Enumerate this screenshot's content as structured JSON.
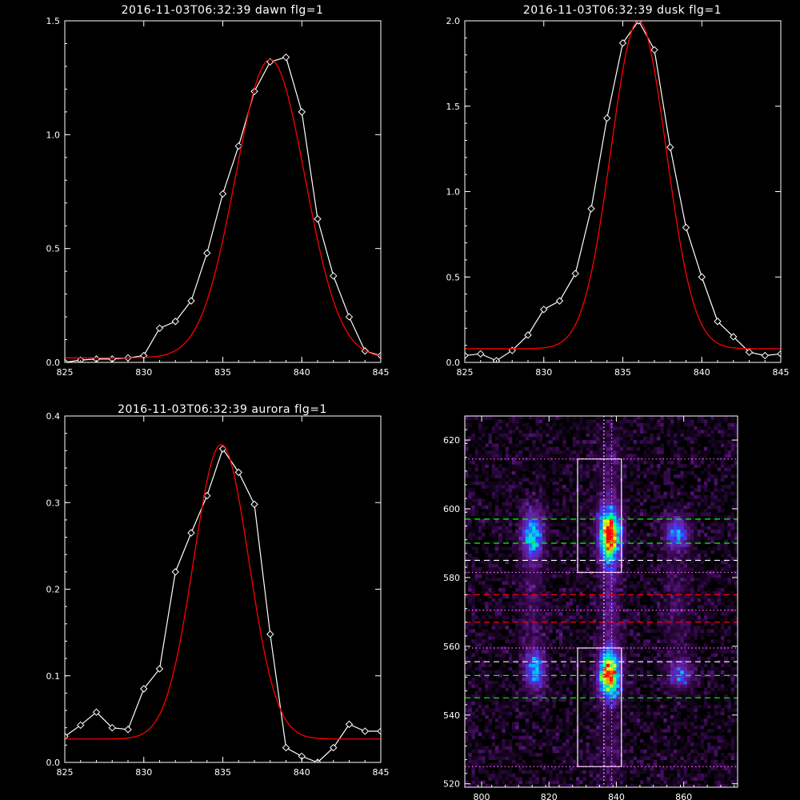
{
  "chart_data": [
    {
      "type": "line",
      "title": "2016-11-03T06:32:39 dawn flg=1",
      "xlim": [
        825,
        845
      ],
      "ylim": [
        0,
        1.5
      ],
      "xticks": [
        "825",
        "830",
        "835",
        "840",
        "845"
      ],
      "yticks": [
        "0.0",
        "0.5",
        "1.0",
        "1.5"
      ],
      "series": [
        {
          "style": "observed-with-diamond-markers",
          "color": "#ffffff",
          "x": [
            825,
            826,
            827,
            828,
            829,
            830,
            831,
            832,
            833,
            834,
            835,
            836,
            837,
            838,
            839,
            840,
            841,
            842,
            843,
            844,
            845
          ],
          "y": [
            0.0,
            0.01,
            0.015,
            0.015,
            0.02,
            0.03,
            0.15,
            0.18,
            0.27,
            0.48,
            0.74,
            0.95,
            1.19,
            1.32,
            1.34,
            1.1,
            0.63,
            0.38,
            0.2,
            0.05,
            0.03
          ]
        },
        {
          "style": "gaussian-fit",
          "color": "#ff0000",
          "fit": {
            "amplitude": 1.31,
            "center": 838.0,
            "sigma": 2.2,
            "baseline": 0.02
          }
        }
      ]
    },
    {
      "type": "line",
      "title": "2016-11-03T06:32:39 dusk flg=1",
      "xlim": [
        825,
        845
      ],
      "ylim": [
        0,
        2.0
      ],
      "xticks": [
        "825",
        "830",
        "835",
        "840",
        "845"
      ],
      "yticks": [
        "0.0",
        "0.5",
        "1.0",
        "1.5",
        "2.0"
      ],
      "series": [
        {
          "style": "observed-with-diamond-markers",
          "color": "#ffffff",
          "x": [
            825,
            826,
            827,
            828,
            829,
            830,
            831,
            832,
            833,
            834,
            835,
            836,
            837,
            838,
            839,
            840,
            841,
            842,
            843,
            844,
            845
          ],
          "y": [
            0.04,
            0.05,
            0.01,
            0.07,
            0.16,
            0.31,
            0.36,
            0.52,
            0.9,
            1.43,
            1.87,
            2.0,
            1.83,
            1.26,
            0.79,
            0.5,
            0.24,
            0.15,
            0.06,
            0.04,
            0.05
          ]
        },
        {
          "style": "gaussian-fit",
          "color": "#ff0000",
          "fit": {
            "amplitude": 1.92,
            "center": 836.0,
            "sigma": 1.75,
            "baseline": 0.08
          }
        }
      ]
    },
    {
      "type": "line",
      "title": "2016-11-03T06:32:39 aurora flg=1",
      "xlim": [
        825,
        845
      ],
      "ylim": [
        0,
        0.4
      ],
      "xticks": [
        "825",
        "830",
        "835",
        "840",
        "845"
      ],
      "yticks": [
        "0.0",
        "0.1",
        "0.2",
        "0.3",
        "0.4"
      ],
      "series": [
        {
          "style": "observed-with-diamond-markers",
          "color": "#ffffff",
          "x": [
            825,
            826,
            827,
            828,
            829,
            830,
            831,
            832,
            833,
            834,
            835,
            836,
            837,
            838,
            839,
            840,
            841,
            842,
            843,
            844,
            845
          ],
          "y": [
            0.03,
            0.043,
            0.058,
            0.04,
            0.038,
            0.085,
            0.108,
            0.22,
            0.265,
            0.308,
            0.362,
            0.335,
            0.298,
            0.148,
            0.017,
            0.007,
            0.0,
            0.017,
            0.044,
            0.036,
            0.036
          ]
        },
        {
          "style": "gaussian-fit",
          "color": "#ff0000",
          "fit": {
            "amplitude": 0.34,
            "center": 834.9,
            "sigma": 1.75,
            "baseline": 0.027
          }
        }
      ]
    },
    {
      "type": "heatmap",
      "title": "",
      "xlim": [
        795,
        876
      ],
      "ylim": [
        519,
        627
      ],
      "xticks": [
        "800",
        "820",
        "840",
        "860"
      ],
      "yticks": [
        "520",
        "540",
        "560",
        "580",
        "600",
        "620"
      ],
      "colormap": [
        "#000000",
        "#3b0a55",
        "#6a1e96",
        "#3a3dff",
        "#00c8ff",
        "#00ff80",
        "#ffff00",
        "#ff0000"
      ],
      "noise_level": 0.14,
      "sources": [
        {
          "x": 815,
          "y": 592.5,
          "sx": 2.2,
          "sy": 5.0,
          "amp": 0.55
        },
        {
          "x": 838,
          "y": 592.5,
          "sx": 2.2,
          "sy": 5.5,
          "amp": 1.0
        },
        {
          "x": 858,
          "y": 593,
          "sx": 2.5,
          "sy": 3.5,
          "amp": 0.4
        },
        {
          "x": 816,
          "y": 553,
          "sx": 2.0,
          "sy": 4.0,
          "amp": 0.5
        },
        {
          "x": 838,
          "y": 552,
          "sx": 2.2,
          "sy": 5.0,
          "amp": 0.95
        },
        {
          "x": 859,
          "y": 552,
          "sx": 2.5,
          "sy": 3.0,
          "amp": 0.35
        },
        {
          "x": 838,
          "y": 572,
          "sx": 2.0,
          "sy": 10.0,
          "amp": 0.2
        },
        {
          "x": 815,
          "y": 572,
          "sx": 2.5,
          "sy": 12.0,
          "amp": 0.12
        },
        {
          "x": 858,
          "y": 572,
          "sx": 3.0,
          "sy": 12.0,
          "amp": 0.1
        },
        {
          "x": 838,
          "y": 530,
          "sx": 2.5,
          "sy": 8.0,
          "amp": 0.12
        },
        {
          "x": 838,
          "y": 612,
          "sx": 2.5,
          "sy": 8.0,
          "amp": 0.12
        }
      ],
      "boxes": [
        {
          "x0": 828.5,
          "x1": 841.5,
          "y0": 581.5,
          "y1": 614.5
        },
        {
          "x0": 828.5,
          "x1": 841.5,
          "y0": 525,
          "y1": 559.5
        }
      ],
      "vertical_lines": [
        {
          "x": 836.3,
          "style": "dotted",
          "color": "#ffffff"
        },
        {
          "x": 838.6,
          "style": "dotted",
          "color": "#ff66ff"
        }
      ],
      "horizontal_lines": [
        {
          "y": 614.5,
          "style": "dotted",
          "color": "#ff66ff"
        },
        {
          "y": 597,
          "style": "dashed",
          "color": "#00ff00"
        },
        {
          "y": 590,
          "style": "dashed",
          "color": "#00ff00"
        },
        {
          "y": 585,
          "style": "dashed",
          "color": "#ffffff"
        },
        {
          "y": 581.5,
          "style": "dotted",
          "color": "#ff66ff"
        },
        {
          "y": 575,
          "style": "dashed",
          "color": "#ff0000"
        },
        {
          "y": 570.5,
          "style": "dotted",
          "color": "#ff66ff"
        },
        {
          "y": 567,
          "style": "dashed",
          "color": "#ff0000"
        },
        {
          "y": 559.5,
          "style": "dotted",
          "color": "#ff66ff"
        },
        {
          "y": 555.5,
          "style": "dashed",
          "color": "#ffffff"
        },
        {
          "y": 551.5,
          "style": "dashed",
          "color": "#00ff00"
        },
        {
          "y": 545,
          "style": "dashed",
          "color": "#00ff00"
        },
        {
          "y": 525,
          "style": "dotted",
          "color": "#ff66ff"
        }
      ]
    }
  ]
}
